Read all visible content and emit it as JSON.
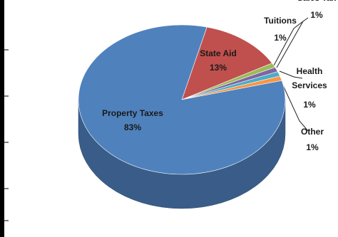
{
  "chart_data": {
    "type": "pie",
    "categories": [
      "State Aid",
      "Tuitions",
      "Sales Tax",
      "Health Services",
      "Other",
      "Property Taxes"
    ],
    "values": [
      13,
      1,
      1,
      1,
      1,
      83
    ],
    "value_labels": [
      "13%",
      "1%",
      "1%",
      "1%",
      "1%",
      "83%"
    ],
    "colors": [
      "#c0504d",
      "#9bbb59",
      "#8064a2",
      "#4bacc6",
      "#f79646",
      "#4f81bd"
    ]
  }
}
